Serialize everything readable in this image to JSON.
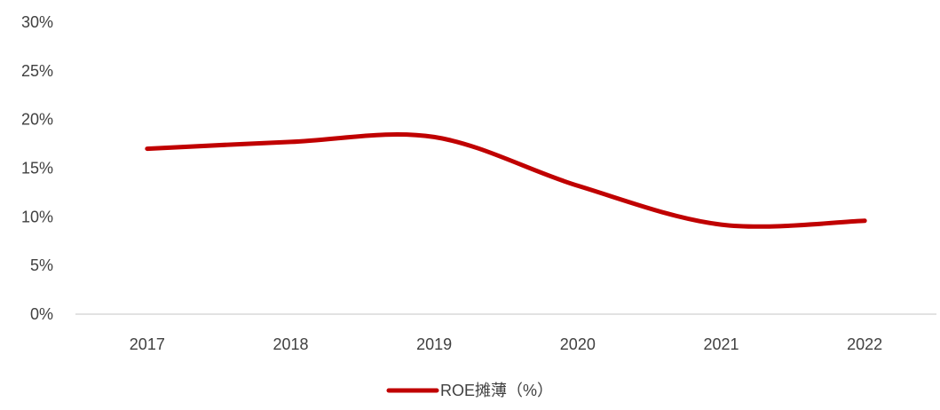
{
  "chart_data": {
    "type": "line",
    "x": [
      "2017",
      "2018",
      "2019",
      "2020",
      "2021",
      "2022"
    ],
    "series": [
      {
        "name": "ROE摊薄（%）",
        "values": [
          17.0,
          17.7,
          18.2,
          13.2,
          9.2,
          9.6
        ],
        "color": "#C00000"
      }
    ],
    "yticks": [
      "0%",
      "5%",
      "10%",
      "15%",
      "20%",
      "25%",
      "30%"
    ],
    "ylim": [
      0,
      30
    ],
    "grid": false,
    "legend_position": "bottom"
  }
}
